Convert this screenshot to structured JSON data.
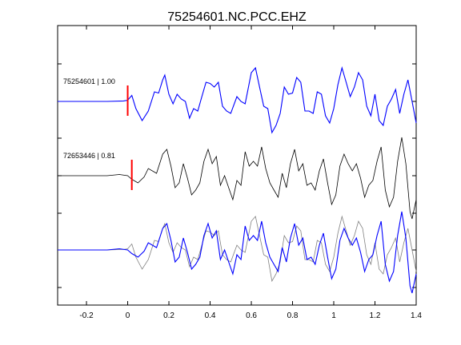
{
  "chart_data": {
    "type": "line",
    "title": "75254601.NC.PCC.EHZ",
    "xlabel": "",
    "ylabel": "",
    "xlim": [
      -0.34,
      1.4
    ],
    "x_ticks": [
      -0.2,
      0,
      0.2,
      0.4,
      0.6,
      0.8,
      1,
      1.2,
      1.4
    ],
    "x_tick_labels": [
      "-0.2",
      "0",
      "0.2",
      "0.4",
      "0.6",
      "0.8",
      "1",
      "1.2",
      "1.4"
    ],
    "grid": false,
    "colors": {
      "primary": "#0000ff",
      "reference": "#000000",
      "reference_overlay": "#808080",
      "pick": "#ff0000"
    },
    "traces": [
      {
        "label": "75254601 | 1.00",
        "offset_row": 0,
        "color": "primary",
        "pick_time": 0.0,
        "points": [
          [
            -0.34,
            0.0
          ],
          [
            -0.1,
            0.0
          ],
          [
            -0.02,
            0.02
          ],
          [
            0.0,
            0.05
          ],
          [
            0.02,
            0.25
          ],
          [
            0.04,
            -0.3
          ],
          [
            0.07,
            -0.8
          ],
          [
            0.1,
            -0.4
          ],
          [
            0.13,
            0.4
          ],
          [
            0.15,
            0.35
          ],
          [
            0.17,
            0.9
          ],
          [
            0.18,
            1.1
          ],
          [
            0.2,
            0.3
          ],
          [
            0.22,
            -0.1
          ],
          [
            0.24,
            0.3
          ],
          [
            0.26,
            0.1
          ],
          [
            0.28,
            0.0
          ],
          [
            0.3,
            -0.7
          ],
          [
            0.32,
            -0.3
          ],
          [
            0.34,
            -0.4
          ],
          [
            0.36,
            0.2
          ],
          [
            0.38,
            0.8
          ],
          [
            0.4,
            0.75
          ],
          [
            0.42,
            0.6
          ],
          [
            0.44,
            0.8
          ],
          [
            0.46,
            -0.2
          ],
          [
            0.48,
            -0.4
          ],
          [
            0.5,
            -0.5
          ],
          [
            0.53,
            0.2
          ],
          [
            0.55,
            0.0
          ],
          [
            0.57,
            -0.1
          ],
          [
            0.6,
            1.2
          ],
          [
            0.62,
            1.4
          ],
          [
            0.64,
            0.6
          ],
          [
            0.66,
            -0.2
          ],
          [
            0.68,
            -0.3
          ],
          [
            0.7,
            -1.3
          ],
          [
            0.72,
            -1.0
          ],
          [
            0.74,
            -0.5
          ],
          [
            0.76,
            0.6
          ],
          [
            0.78,
            0.3
          ],
          [
            0.8,
            0.35
          ],
          [
            0.82,
            1.0
          ],
          [
            0.84,
            0.8
          ],
          [
            0.86,
            -0.4
          ],
          [
            0.88,
            -0.4
          ],
          [
            0.9,
            -0.5
          ],
          [
            0.92,
            0.4
          ],
          [
            0.94,
            0.3
          ],
          [
            0.96,
            -0.6
          ],
          [
            0.98,
            -0.9
          ],
          [
            1.0,
            -0.3
          ],
          [
            1.02,
            0.7
          ],
          [
            1.04,
            1.4
          ],
          [
            1.06,
            0.8
          ],
          [
            1.08,
            0.2
          ],
          [
            1.1,
            0.6
          ],
          [
            1.12,
            1.2
          ],
          [
            1.14,
            0.9
          ],
          [
            1.16,
            -0.2
          ],
          [
            1.18,
            -0.6
          ],
          [
            1.2,
            0.3
          ],
          [
            1.22,
            -0.8
          ],
          [
            1.24,
            -1.0
          ],
          [
            1.26,
            -0.2
          ],
          [
            1.28,
            0.1
          ],
          [
            1.3,
            0.5
          ],
          [
            1.32,
            -0.5
          ],
          [
            1.34,
            0.3
          ],
          [
            1.36,
            0.9
          ],
          [
            1.38,
            0.0
          ],
          [
            1.4,
            -0.9
          ]
        ]
      },
      {
        "label": "72653446 | 0.81",
        "offset_row": 1,
        "color": "reference",
        "pick_time": 0.02,
        "points": [
          [
            -0.34,
            0.0
          ],
          [
            -0.1,
            0.0
          ],
          [
            -0.04,
            0.05
          ],
          [
            0.0,
            0.0
          ],
          [
            0.02,
            -0.15
          ],
          [
            0.05,
            -0.3
          ],
          [
            0.08,
            -0.05
          ],
          [
            0.1,
            0.3
          ],
          [
            0.14,
            0.1
          ],
          [
            0.17,
            0.9
          ],
          [
            0.19,
            1.1
          ],
          [
            0.21,
            0.4
          ],
          [
            0.23,
            -0.5
          ],
          [
            0.25,
            -0.3
          ],
          [
            0.27,
            0.5
          ],
          [
            0.29,
            -0.1
          ],
          [
            0.31,
            -0.8
          ],
          [
            0.33,
            -0.6
          ],
          [
            0.35,
            -0.3
          ],
          [
            0.37,
            0.6
          ],
          [
            0.39,
            1.1
          ],
          [
            0.41,
            0.5
          ],
          [
            0.43,
            0.8
          ],
          [
            0.45,
            -0.4
          ],
          [
            0.47,
            0.0
          ],
          [
            0.49,
            -0.5
          ],
          [
            0.51,
            -1.0
          ],
          [
            0.53,
            -0.2
          ],
          [
            0.55,
            -0.4
          ],
          [
            0.57,
            1.0
          ],
          [
            0.59,
            0.4
          ],
          [
            0.61,
            0.6
          ],
          [
            0.63,
            0.4
          ],
          [
            0.65,
            1.2
          ],
          [
            0.67,
            0.3
          ],
          [
            0.69,
            -0.3
          ],
          [
            0.71,
            -0.6
          ],
          [
            0.73,
            -0.9
          ],
          [
            0.75,
            0.1
          ],
          [
            0.77,
            -0.5
          ],
          [
            0.79,
            0.5
          ],
          [
            0.81,
            1.1
          ],
          [
            0.83,
            0.2
          ],
          [
            0.85,
            0.5
          ],
          [
            0.87,
            -0.4
          ],
          [
            0.89,
            -0.3
          ],
          [
            0.91,
            -0.6
          ],
          [
            0.93,
            0.2
          ],
          [
            0.95,
            0.7
          ],
          [
            0.97,
            -0.3
          ],
          [
            0.99,
            -1.2
          ],
          [
            1.01,
            -0.8
          ],
          [
            1.03,
            0.4
          ],
          [
            1.05,
            0.9
          ],
          [
            1.07,
            0.5
          ],
          [
            1.09,
            0.2
          ],
          [
            1.11,
            0.5
          ],
          [
            1.13,
            -0.1
          ],
          [
            1.15,
            -0.9
          ],
          [
            1.17,
            -0.4
          ],
          [
            1.19,
            -0.2
          ],
          [
            1.21,
            0.6
          ],
          [
            1.23,
            1.2
          ],
          [
            1.25,
            -0.6
          ],
          [
            1.27,
            -1.3
          ],
          [
            1.29,
            -0.9
          ],
          [
            1.31,
            0.6
          ],
          [
            1.33,
            1.6
          ],
          [
            1.35,
            0.5
          ],
          [
            1.37,
            -1.5
          ],
          [
            1.38,
            -1.8
          ],
          [
            1.4,
            -1.0
          ]
        ]
      }
    ],
    "overlay": {
      "offset_row": 2,
      "traces": [
        0,
        1
      ],
      "colors": [
        "reference_overlay",
        "primary"
      ]
    }
  }
}
